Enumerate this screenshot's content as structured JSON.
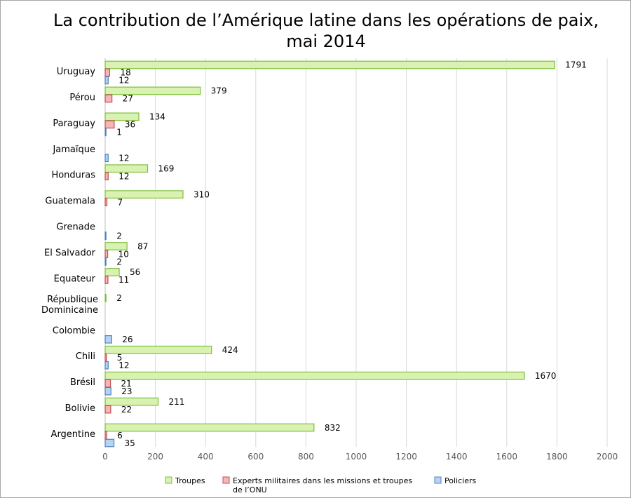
{
  "title_lines": [
    "La contribution de l’Amérique latine dans les opérations de paix,",
    "mai 2014"
  ],
  "colors": {
    "troupes_fill": "#d9f2b2",
    "troupes_stroke": "#7cbf3c",
    "experts_fill": "#f4b6b6",
    "experts_stroke": "#c0504d",
    "policiers_fill": "#b7d3f2",
    "policiers_stroke": "#4f81bd",
    "grid": "#d9d9d9",
    "axis_text": "#595959"
  },
  "chart_data": {
    "type": "bar",
    "orientation": "horizontal",
    "title": "La contribution de l’Amérique latine dans les opérations de paix, mai 2014",
    "categories": [
      "Uruguay",
      "Pérou",
      "Paraguay",
      "Jamaïque",
      "Honduras",
      "Guatemala",
      "Grenade",
      "El Salvador",
      "Equateur",
      "République Dominicaine",
      "Colombie",
      "Chili",
      "Brésil",
      "Bolivie",
      "Argentine"
    ],
    "series": [
      {
        "name": "Troupes",
        "values": [
          1791,
          379,
          134,
          null,
          169,
          310,
          null,
          87,
          56,
          2,
          null,
          424,
          1670,
          211,
          832
        ]
      },
      {
        "name": "Experts militaires dans les missions et troupes de l’ONU",
        "values": [
          18,
          27,
          36,
          null,
          12,
          7,
          null,
          10,
          11,
          null,
          null,
          5,
          21,
          22,
          6
        ]
      },
      {
        "name": "Policiers",
        "values": [
          12,
          null,
          1,
          12,
          null,
          null,
          2,
          2,
          null,
          null,
          26,
          12,
          23,
          null,
          35
        ]
      }
    ],
    "xlim": [
      0,
      2000
    ],
    "x_ticks": [
      0,
      200,
      400,
      600,
      800,
      1000,
      1200,
      1400,
      1600,
      1800,
      2000
    ],
    "grid": true,
    "legend_position": "bottom"
  },
  "legend": {
    "items": [
      {
        "key": "troupes",
        "label_lines": [
          "Troupes"
        ]
      },
      {
        "key": "experts",
        "label_lines": [
          "Experts militaires dans les missions et troupes",
          "de l’ONU"
        ]
      },
      {
        "key": "policiers",
        "label_lines": [
          "Policiers"
        ]
      }
    ]
  }
}
